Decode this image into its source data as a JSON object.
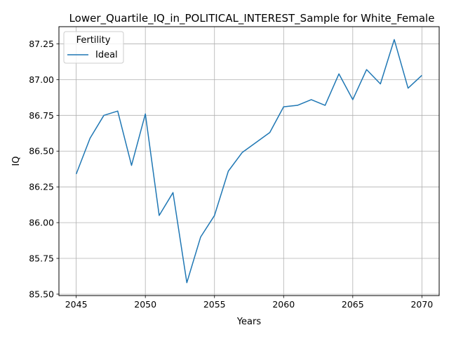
{
  "chart_data": {
    "type": "line",
    "title": "Lower_Quartile_IQ_in_POLITICAL_INTEREST_Sample for White_Female",
    "xlabel": "Years",
    "ylabel": "IQ",
    "xlim": [
      2043.75,
      2071.25
    ],
    "ylim": [
      85.49,
      87.37
    ],
    "xticks": [
      2045,
      2050,
      2055,
      2060,
      2065,
      2070
    ],
    "xtick_labels": [
      "2045",
      "2050",
      "2055",
      "2060",
      "2065",
      "2070"
    ],
    "yticks": [
      85.5,
      85.75,
      86.0,
      86.25,
      86.5,
      86.75,
      87.0,
      87.25
    ],
    "ytick_labels": [
      "85.50",
      "85.75",
      "86.00",
      "86.25",
      "86.50",
      "86.75",
      "87.00",
      "87.25"
    ],
    "grid": true,
    "legend": {
      "title": "Fertility",
      "placement": "upper-left"
    },
    "series": [
      {
        "name": "Ideal",
        "color": "#1f77b4",
        "x": [
          2045,
          2046,
          2047,
          2048,
          2049,
          2050,
          2051,
          2052,
          2053,
          2054,
          2055,
          2056,
          2057,
          2058,
          2059,
          2060,
          2061,
          2062,
          2063,
          2064,
          2065,
          2066,
          2067,
          2068,
          2069,
          2070
        ],
        "y": [
          86.34,
          86.59,
          86.75,
          86.78,
          86.4,
          86.76,
          86.05,
          86.21,
          85.58,
          85.9,
          86.05,
          86.36,
          86.49,
          86.56,
          86.63,
          86.81,
          86.82,
          86.86,
          86.82,
          87.04,
          86.86,
          87.07,
          86.97,
          87.28,
          86.94,
          87.03
        ]
      }
    ]
  }
}
